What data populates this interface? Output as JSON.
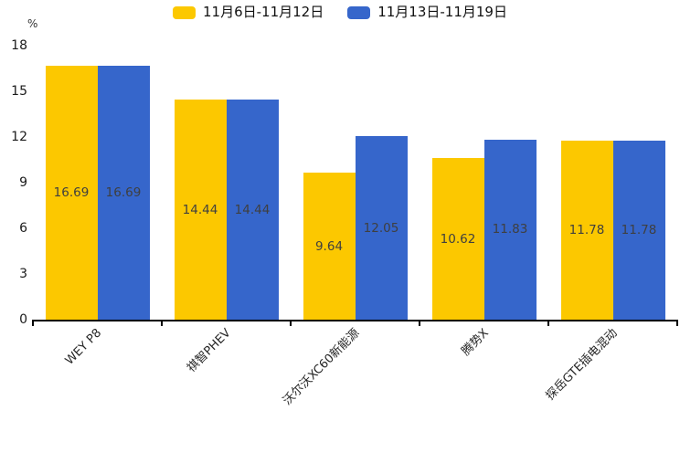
{
  "chart_data": {
    "type": "bar",
    "categories": [
      "WEY P8",
      "祺智PHEV",
      "沃尔沃XC60新能源",
      "腾势X",
      "探岳GTE插电混动"
    ],
    "series": [
      {
        "name": "11月6日-11月12日",
        "color": "#FCC800",
        "values": [
          16.69,
          14.44,
          9.64,
          10.62,
          11.78
        ]
      },
      {
        "name": "11月13日-11月19日",
        "color": "#3666CB",
        "values": [
          16.69,
          14.44,
          12.05,
          11.83,
          11.78
        ]
      }
    ],
    "title": "",
    "xlabel": "",
    "ylabel": "%",
    "ylim": [
      0,
      18
    ],
    "y_ticks": [
      0,
      3,
      6,
      9,
      12,
      15,
      18
    ],
    "grid": false,
    "legend_position": "top-center",
    "value_labels": "inside-center",
    "value_label_format": "2-decimals",
    "axis_color": "#000000",
    "background_color": "#ffffff"
  }
}
